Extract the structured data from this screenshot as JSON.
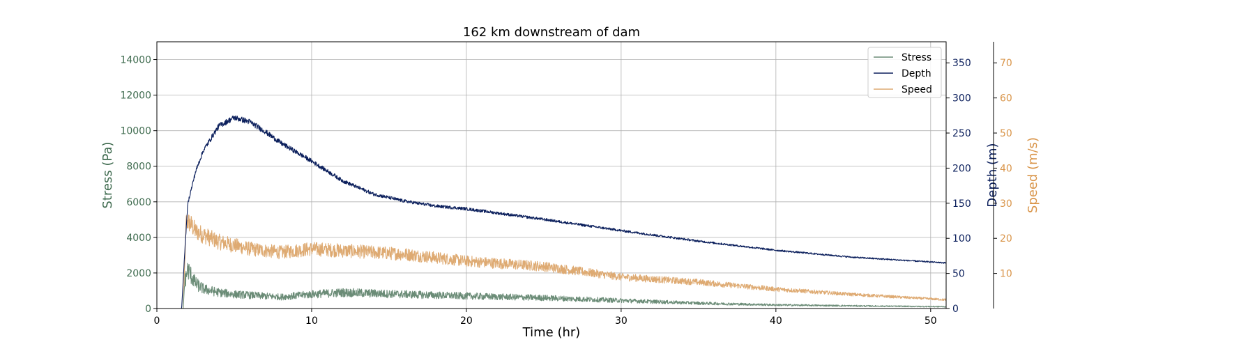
{
  "chart_data": {
    "type": "line",
    "title": "162 km downstream of dam",
    "xlabel": "Time (hr)",
    "xlim": [
      0,
      51
    ],
    "xticks": [
      0,
      10,
      20,
      30,
      40,
      50
    ],
    "grid": true,
    "legend_placement": "top-right",
    "axes": [
      {
        "id": "stress",
        "label": "Stress (Pa)",
        "side": "left",
        "color": "#3f6b4f",
        "ylim": [
          0,
          15000
        ],
        "ticks": [
          0,
          2000,
          4000,
          6000,
          8000,
          10000,
          12000,
          14000
        ]
      },
      {
        "id": "depth",
        "label": "Depth (m)",
        "side": "right",
        "color": "#0b1f5c",
        "ylim": [
          0,
          380
        ],
        "ticks": [
          0,
          50,
          100,
          150,
          200,
          250,
          300,
          350
        ]
      },
      {
        "id": "speed",
        "label": "Speed (m/s)",
        "side": "right-outer",
        "color": "#d9954a",
        "ylim": [
          0,
          76
        ],
        "ticks": [
          10,
          20,
          30,
          40,
          50,
          60,
          70
        ]
      }
    ],
    "series": [
      {
        "name": "Stress",
        "axis": "stress",
        "color": "#6b8c77",
        "noise": 0.28,
        "x": [
          0,
          1.7,
          1.8,
          2.0,
          2.5,
          3,
          4,
          5,
          6,
          7,
          8,
          10,
          12,
          14,
          16,
          18,
          20,
          25,
          30,
          35,
          40,
          45,
          51
        ],
        "y": [
          0,
          0,
          1500,
          2200,
          1400,
          1100,
          900,
          800,
          750,
          700,
          650,
          800,
          900,
          850,
          800,
          750,
          700,
          600,
          450,
          300,
          200,
          150,
          100
        ]
      },
      {
        "name": "Depth",
        "axis": "depth",
        "color": "#0b1f5c",
        "noise": 0.015,
        "x": [
          0,
          1.6,
          1.8,
          2.0,
          2.5,
          3,
          4,
          5,
          6,
          7,
          8,
          10,
          12,
          14,
          16,
          18,
          20,
          25,
          30,
          35,
          40,
          45,
          51
        ],
        "y": [
          0,
          0,
          80,
          150,
          195,
          225,
          260,
          272,
          266,
          252,
          236,
          210,
          182,
          163,
          153,
          146,
          142,
          127,
          111,
          96,
          83,
          73,
          65
        ]
      },
      {
        "name": "Speed",
        "axis": "speed",
        "color": "#deaa72",
        "noise": 0.12,
        "x": [
          0,
          1.7,
          1.9,
          2.2,
          2.5,
          3,
          4,
          5,
          6,
          8,
          10,
          12,
          14,
          16,
          18,
          20,
          25,
          30,
          35,
          40,
          45,
          51
        ],
        "y": [
          0,
          0,
          25,
          24,
          22,
          21,
          19,
          18,
          17,
          16,
          17,
          16.5,
          16,
          15.5,
          14.5,
          13.5,
          12,
          9,
          7.5,
          5.5,
          4,
          2.5
        ]
      }
    ]
  }
}
